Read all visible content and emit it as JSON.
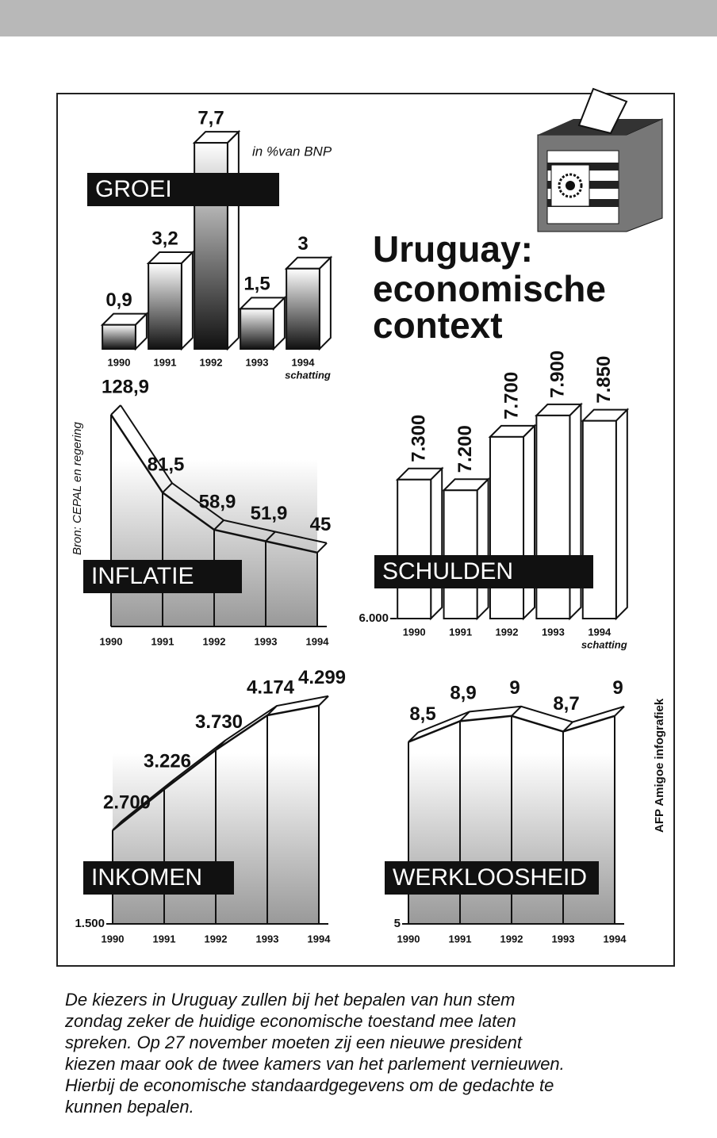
{
  "title": [
    "Uruguay:",
    "economische",
    "context"
  ],
  "source": "Bron: CEPAL en regering",
  "credit": "AFP Amigoe infografiek",
  "caption": [
    "De kiezers in Uruguay zullen bij het bepalen van hun stem",
    "zondag zeker de huidige economische toestand mee laten",
    "spreken. Op 27 november moeten zij een nieuwe president",
    "kiezen maar ook de twee kamers van het parlement vernieuwen.",
    "Hierbij de economische standaardgegevens om de gedachte te",
    "kunnen bepalen."
  ],
  "chart_data": [
    {
      "type": "bar",
      "title": "GROEI",
      "unit": "in %van BNP",
      "note": "schatting",
      "categories": [
        "1990",
        "1991",
        "1992",
        "1993",
        "1994"
      ],
      "values": [
        0.9,
        3.2,
        7.7,
        1.5,
        3
      ],
      "value_labels": [
        "0,9",
        "3,2",
        "7,7",
        "1,5",
        "3"
      ],
      "ylim": [
        0,
        8
      ]
    },
    {
      "type": "line",
      "title": "INFLATIE",
      "categories": [
        "1990",
        "1991",
        "1992",
        "1993",
        "1994"
      ],
      "values": [
        128.9,
        81.5,
        58.9,
        51.9,
        45
      ],
      "value_labels": [
        "128,9",
        "81,5",
        "58,9",
        "51,9",
        "45"
      ],
      "ylim": [
        0,
        140
      ]
    },
    {
      "type": "bar",
      "title": "SCHULDEN",
      "note": "schatting",
      "categories": [
        "1990",
        "1991",
        "1992",
        "1993",
        "1994"
      ],
      "values": [
        7300,
        7200,
        7700,
        7900,
        7850
      ],
      "value_labels": [
        "7.300",
        "7.200",
        "7.700",
        "7.900",
        "7.850"
      ],
      "ylim": [
        6000,
        8300
      ],
      "yticks": [
        {
          "value": 6000,
          "label": "6.000"
        }
      ]
    },
    {
      "type": "line",
      "title": "INKOMEN",
      "categories": [
        "1990",
        "1991",
        "1992",
        "1993",
        "1994"
      ],
      "values": [
        2700,
        3226,
        3730,
        4174,
        4299
      ],
      "value_labels": [
        "2.700",
        "3.226",
        "3.730",
        "4.174",
        "4.299"
      ],
      "ylim": [
        1500,
        4500
      ],
      "yticks": [
        {
          "value": 1500,
          "label": "1.500"
        }
      ]
    },
    {
      "type": "line",
      "title": "WERKLOOSHEID",
      "categories": [
        "1990",
        "1991",
        "1992",
        "1993",
        "1994"
      ],
      "values": [
        8.5,
        8.9,
        9,
        8.7,
        9
      ],
      "value_labels": [
        "8,5",
        "8,9",
        "9",
        "8,7",
        "9"
      ],
      "ylim": [
        5,
        9.5
      ],
      "yticks": [
        5
      ]
    }
  ]
}
